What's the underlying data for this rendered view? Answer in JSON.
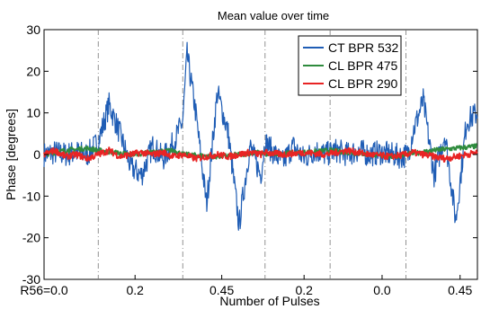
{
  "chart_data": {
    "type": "line",
    "title": "Mean value over time",
    "xlabel": "Number of Pulses",
    "ylabel": "Phase [degrees]",
    "xlim": [
      0,
      1000
    ],
    "ylim": [
      -30,
      30
    ],
    "yticks": [
      30,
      20,
      10,
      0,
      -10,
      -20,
      -30
    ],
    "x_tick_labels": [
      {
        "x": 0,
        "label": "R56=0.0"
      },
      {
        "x": 210,
        "label": "0.2"
      },
      {
        "x": 410,
        "label": "0.45"
      },
      {
        "x": 600,
        "label": "0.2"
      },
      {
        "x": 780,
        "label": "0.0"
      },
      {
        "x": 960,
        "label": "0.45"
      }
    ],
    "vlines": [
      125,
      320,
      510,
      660,
      835,
      1005
    ],
    "legend": {
      "position": "top-right"
    },
    "grid": false,
    "series": [
      {
        "name": "CT BPR 532",
        "color": "#1f5db5",
        "x": [
          0,
          25,
          50,
          75,
          100,
          125,
          150,
          175,
          200,
          225,
          250,
          275,
          300,
          320,
          330,
          350,
          375,
          400,
          425,
          450,
          475,
          500,
          510,
          525,
          550,
          575,
          600,
          625,
          650,
          675,
          700,
          725,
          750,
          775,
          800,
          825,
          840,
          850,
          875,
          900,
          925,
          950,
          975,
          1000,
          1010,
          1025
        ],
        "values": [
          0,
          0.5,
          0,
          0.5,
          0,
          3,
          12,
          5,
          -3,
          -5,
          2,
          -1,
          3,
          8,
          24,
          10,
          -12,
          15,
          5,
          -17,
          2,
          -5,
          3,
          1,
          -2,
          2,
          -1,
          1,
          0,
          1,
          0,
          1,
          0,
          0.5,
          0,
          -0.5,
          0,
          5,
          13,
          -5,
          5,
          -16,
          8,
          10,
          20,
          17
        ]
      },
      {
        "name": "CL BPR 475",
        "color": "#2e8b3d",
        "x": [
          0,
          50,
          100,
          125,
          200,
          300,
          320,
          400,
          500,
          510,
          600,
          660,
          700,
          800,
          835,
          900,
          1000,
          1025
        ],
        "values": [
          0,
          1,
          1.5,
          1,
          0,
          1,
          0,
          -0.5,
          0.5,
          0,
          0.5,
          1,
          0.5,
          -0.5,
          0,
          1,
          2,
          2.5
        ]
      },
      {
        "name": "CL BPR 290",
        "color": "#e82424",
        "x": [
          0,
          25,
          50,
          75,
          100,
          125,
          150,
          175,
          200,
          225,
          250,
          275,
          300,
          320,
          350,
          375,
          400,
          425,
          450,
          475,
          500,
          510,
          550,
          600,
          650,
          700,
          750,
          800,
          835,
          850,
          875,
          900,
          925,
          950,
          975,
          1000,
          1025
        ],
        "values": [
          0,
          1,
          -0.5,
          0,
          -1,
          0,
          1,
          -0.5,
          0,
          0.5,
          0,
          0.5,
          -0.5,
          0,
          -1,
          -0.5,
          0,
          -0.5,
          0,
          0.5,
          0,
          0.5,
          0,
          0.5,
          0,
          1,
          0,
          -0.5,
          0,
          0.5,
          0,
          -0.5,
          -1,
          -0.5,
          0,
          0.5,
          1
        ]
      }
    ]
  }
}
